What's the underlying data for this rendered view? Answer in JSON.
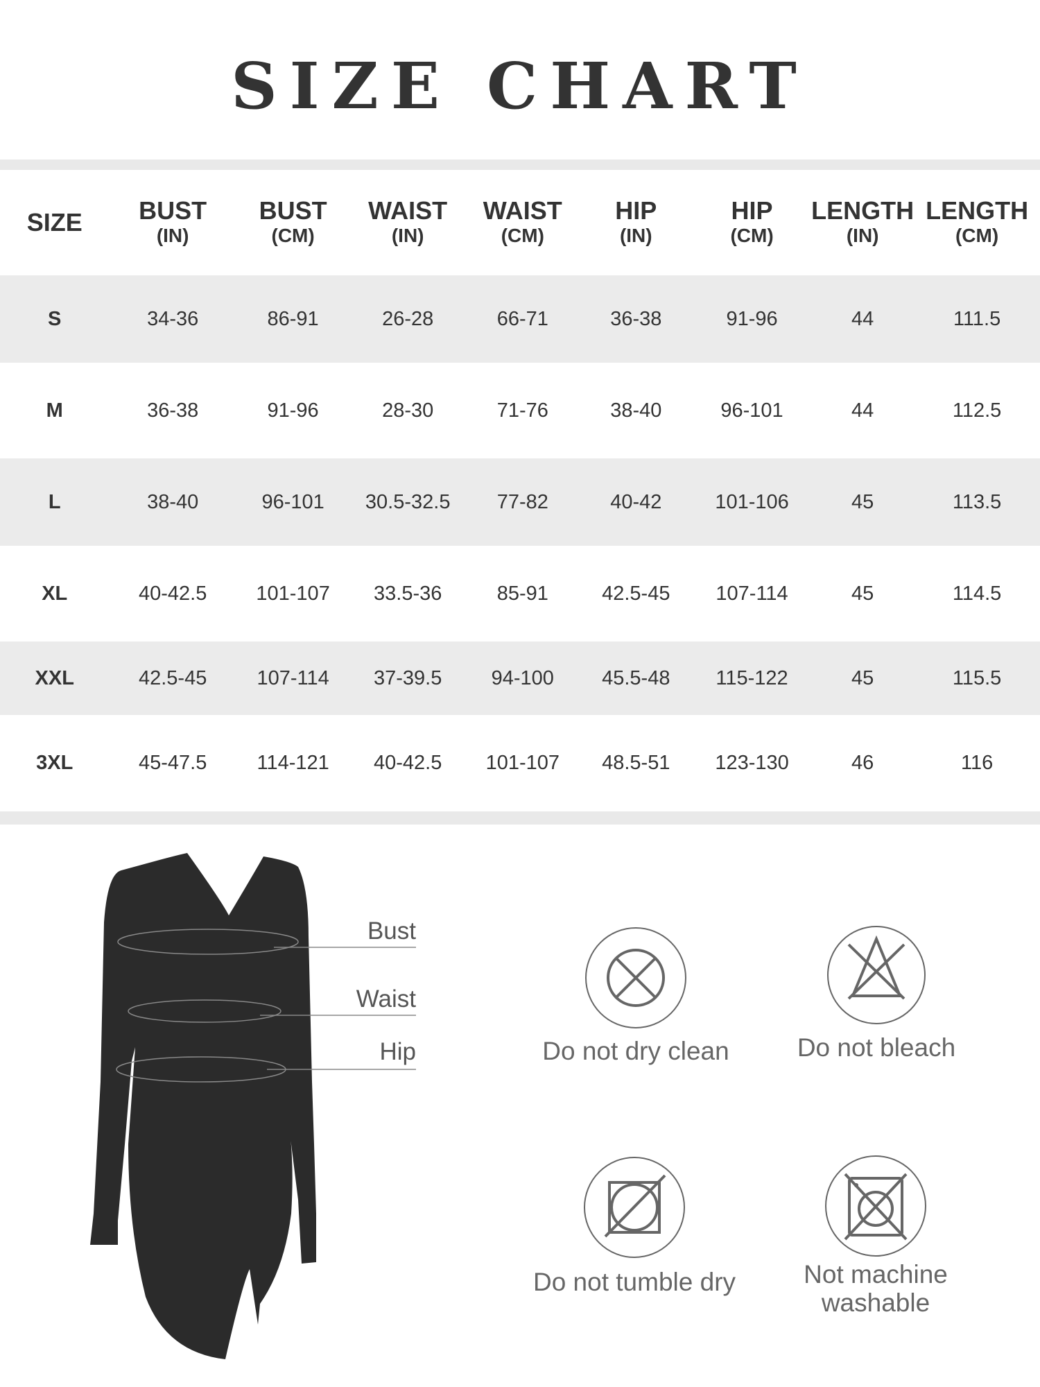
{
  "title": "SIZE CHART",
  "table": {
    "headers": [
      {
        "label": "SIZE",
        "unit": ""
      },
      {
        "label": "BUST",
        "unit": "(IN)"
      },
      {
        "label": "BUST",
        "unit": "(CM)"
      },
      {
        "label": "WAIST",
        "unit": "(IN)"
      },
      {
        "label": "WAIST",
        "unit": "(CM)"
      },
      {
        "label": "HIP",
        "unit": "(IN)"
      },
      {
        "label": "HIP",
        "unit": "(CM)"
      },
      {
        "label": "LENGTH",
        "unit": "(IN)"
      },
      {
        "label": "LENGTH",
        "unit": "(CM)"
      }
    ],
    "rows": [
      [
        "S",
        "34-36",
        "86-91",
        "26-28",
        "66-71",
        "36-38",
        "91-96",
        "44",
        "111.5"
      ],
      [
        "M",
        "36-38",
        "91-96",
        "28-30",
        "71-76",
        "38-40",
        "96-101",
        "44",
        "112.5"
      ],
      [
        "L",
        "38-40",
        "96-101",
        "30.5-32.5",
        "77-82",
        "40-42",
        "101-106",
        "45",
        "113.5"
      ],
      [
        "XL",
        "40-42.5",
        "101-107",
        "33.5-36",
        "85-91",
        "42.5-45",
        "107-114",
        "45",
        "114.5"
      ],
      [
        "XXL",
        "42.5-45",
        "107-114",
        "37-39.5",
        "94-100",
        "45.5-48",
        "115-122",
        "45",
        "115.5"
      ],
      [
        "3XL",
        "45-47.5",
        "114-121",
        "40-42.5",
        "101-107",
        "48.5-51",
        "123-130",
        "46",
        "116"
      ]
    ]
  },
  "measure_labels": {
    "bust": "Bust",
    "waist": "Waist",
    "hip": "Hip"
  },
  "care": [
    {
      "icon": "no-dry-clean-icon",
      "label": "Do not dry clean"
    },
    {
      "icon": "no-bleach-icon",
      "label": "Do not bleach"
    },
    {
      "icon": "no-tumble-dry-icon",
      "label": "Do not tumble dry"
    },
    {
      "icon": "no-machine-wash-icon",
      "label": "Not machine",
      "label2": "washable"
    }
  ],
  "colors": {
    "text": "#333333",
    "stripe": "#ebebeb",
    "dress": "#2b2b2b",
    "icon": "#666666"
  }
}
